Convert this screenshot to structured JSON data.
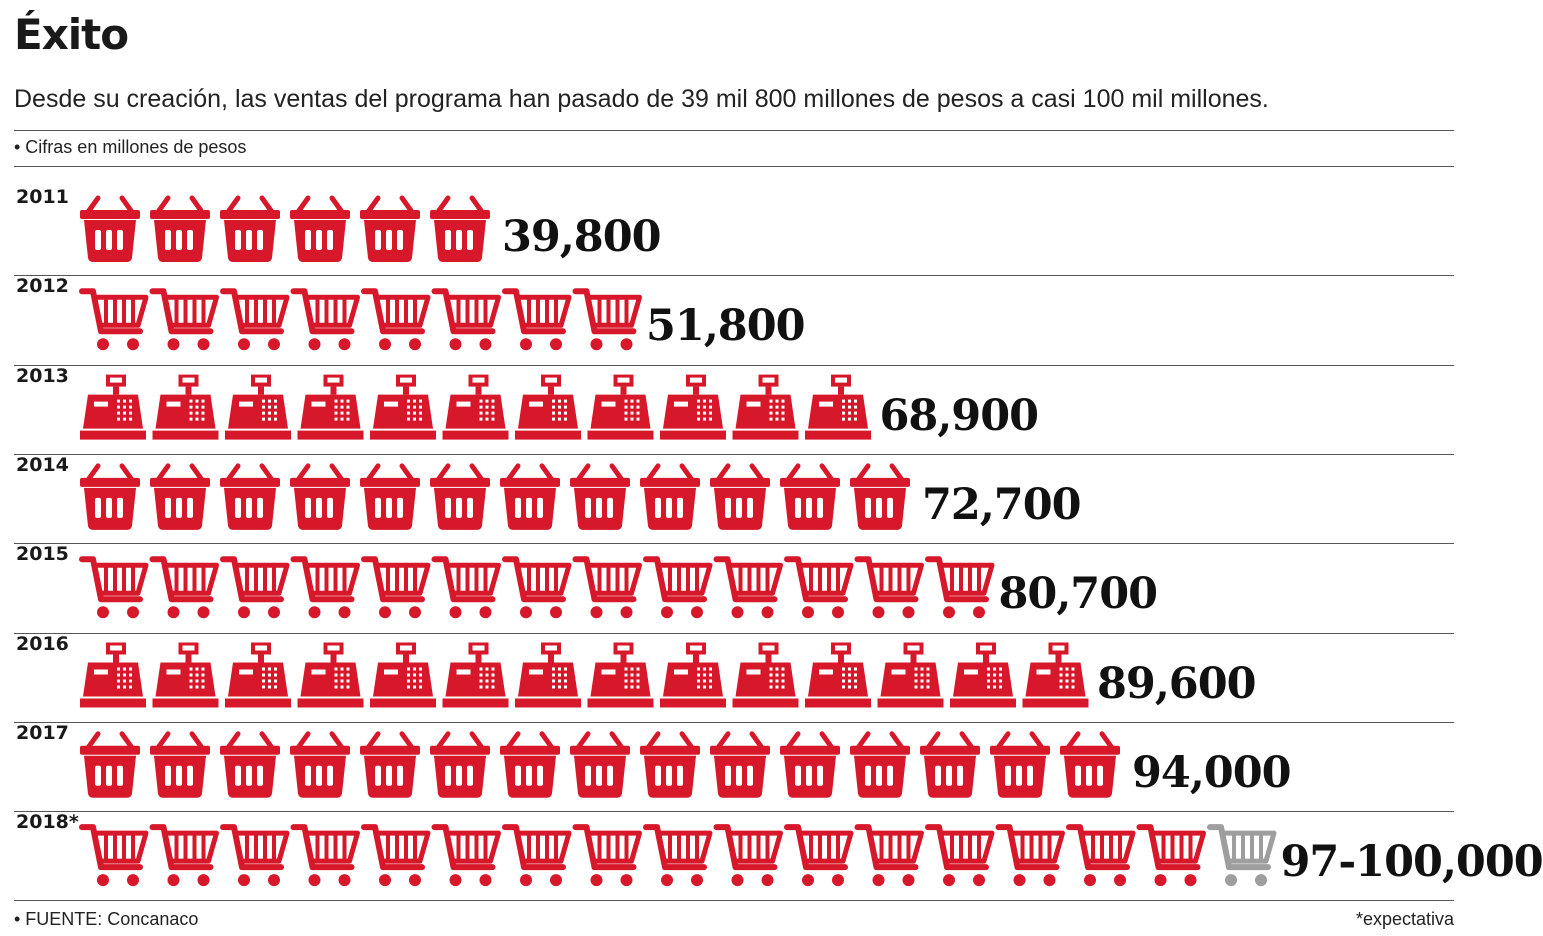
{
  "title": "Éxito",
  "subtitle": "Desde su creación, las ventas del programa han pasado de 39 mil 800 millones de pesos a casi 100 mil millones.",
  "units_note": "• Cifras en millones de pesos",
  "source": "• FUENTE: Concanaco",
  "footnote": "*expectativa",
  "colors": {
    "icon": "#d7182a",
    "expected_icon": "#9e9e9e",
    "rule": "#555555"
  },
  "chart_data": {
    "type": "bar",
    "title": "Éxito",
    "ylabel": "Cifras en millones de pesos",
    "categories": [
      "2011",
      "2012",
      "2013",
      "2014",
      "2015",
      "2016",
      "2017",
      "2018*"
    ],
    "values": [
      39800,
      51800,
      68900,
      72700,
      80700,
      89600,
      94000,
      100000
    ],
    "value_labels": [
      "39,800",
      "51,800",
      "68,900",
      "72,700",
      "80,700",
      "89,600",
      "94,000",
      "97-100,000"
    ],
    "icons": [
      "basket-icon",
      "cart-icon",
      "register-icon",
      "basket-icon",
      "cart-icon",
      "register-icon",
      "basket-icon",
      "cart-icon"
    ],
    "icon_counts": [
      6,
      8,
      11,
      12,
      13,
      14,
      15,
      16
    ],
    "expected_icons": [
      0,
      0,
      0,
      0,
      0,
      0,
      0,
      1
    ]
  }
}
